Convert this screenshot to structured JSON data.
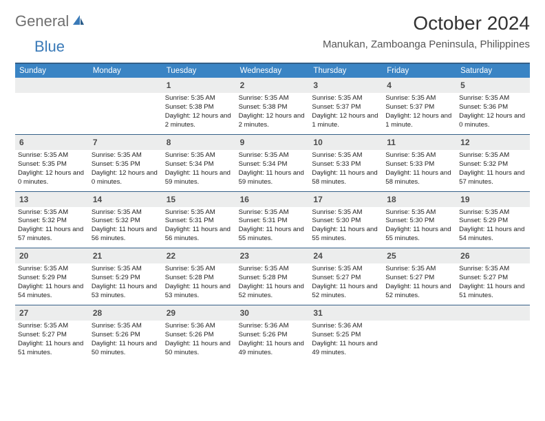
{
  "brand": {
    "word1": "General",
    "word2": "Blue"
  },
  "colors": {
    "header_bg": "#3a84c4",
    "border": "#345f87",
    "daynum_bg": "#eceded",
    "logo_gray": "#6f6f6f",
    "logo_blue": "#3a7ab8"
  },
  "title": "October 2024",
  "location": "Manukan, Zamboanga Peninsula, Philippines",
  "days_of_week": [
    "Sunday",
    "Monday",
    "Tuesday",
    "Wednesday",
    "Thursday",
    "Friday",
    "Saturday"
  ],
  "weeks": [
    [
      {
        "n": "",
        "sr": "",
        "ss": "",
        "dl": ""
      },
      {
        "n": "",
        "sr": "",
        "ss": "",
        "dl": ""
      },
      {
        "n": "1",
        "sr": "Sunrise: 5:35 AM",
        "ss": "Sunset: 5:38 PM",
        "dl": "Daylight: 12 hours and 2 minutes."
      },
      {
        "n": "2",
        "sr": "Sunrise: 5:35 AM",
        "ss": "Sunset: 5:38 PM",
        "dl": "Daylight: 12 hours and 2 minutes."
      },
      {
        "n": "3",
        "sr": "Sunrise: 5:35 AM",
        "ss": "Sunset: 5:37 PM",
        "dl": "Daylight: 12 hours and 1 minute."
      },
      {
        "n": "4",
        "sr": "Sunrise: 5:35 AM",
        "ss": "Sunset: 5:37 PM",
        "dl": "Daylight: 12 hours and 1 minute."
      },
      {
        "n": "5",
        "sr": "Sunrise: 5:35 AM",
        "ss": "Sunset: 5:36 PM",
        "dl": "Daylight: 12 hours and 0 minutes."
      }
    ],
    [
      {
        "n": "6",
        "sr": "Sunrise: 5:35 AM",
        "ss": "Sunset: 5:35 PM",
        "dl": "Daylight: 12 hours and 0 minutes."
      },
      {
        "n": "7",
        "sr": "Sunrise: 5:35 AM",
        "ss": "Sunset: 5:35 PM",
        "dl": "Daylight: 12 hours and 0 minutes."
      },
      {
        "n": "8",
        "sr": "Sunrise: 5:35 AM",
        "ss": "Sunset: 5:34 PM",
        "dl": "Daylight: 11 hours and 59 minutes."
      },
      {
        "n": "9",
        "sr": "Sunrise: 5:35 AM",
        "ss": "Sunset: 5:34 PM",
        "dl": "Daylight: 11 hours and 59 minutes."
      },
      {
        "n": "10",
        "sr": "Sunrise: 5:35 AM",
        "ss": "Sunset: 5:33 PM",
        "dl": "Daylight: 11 hours and 58 minutes."
      },
      {
        "n": "11",
        "sr": "Sunrise: 5:35 AM",
        "ss": "Sunset: 5:33 PM",
        "dl": "Daylight: 11 hours and 58 minutes."
      },
      {
        "n": "12",
        "sr": "Sunrise: 5:35 AM",
        "ss": "Sunset: 5:32 PM",
        "dl": "Daylight: 11 hours and 57 minutes."
      }
    ],
    [
      {
        "n": "13",
        "sr": "Sunrise: 5:35 AM",
        "ss": "Sunset: 5:32 PM",
        "dl": "Daylight: 11 hours and 57 minutes."
      },
      {
        "n": "14",
        "sr": "Sunrise: 5:35 AM",
        "ss": "Sunset: 5:32 PM",
        "dl": "Daylight: 11 hours and 56 minutes."
      },
      {
        "n": "15",
        "sr": "Sunrise: 5:35 AM",
        "ss": "Sunset: 5:31 PM",
        "dl": "Daylight: 11 hours and 56 minutes."
      },
      {
        "n": "16",
        "sr": "Sunrise: 5:35 AM",
        "ss": "Sunset: 5:31 PM",
        "dl": "Daylight: 11 hours and 55 minutes."
      },
      {
        "n": "17",
        "sr": "Sunrise: 5:35 AM",
        "ss": "Sunset: 5:30 PM",
        "dl": "Daylight: 11 hours and 55 minutes."
      },
      {
        "n": "18",
        "sr": "Sunrise: 5:35 AM",
        "ss": "Sunset: 5:30 PM",
        "dl": "Daylight: 11 hours and 55 minutes."
      },
      {
        "n": "19",
        "sr": "Sunrise: 5:35 AM",
        "ss": "Sunset: 5:29 PM",
        "dl": "Daylight: 11 hours and 54 minutes."
      }
    ],
    [
      {
        "n": "20",
        "sr": "Sunrise: 5:35 AM",
        "ss": "Sunset: 5:29 PM",
        "dl": "Daylight: 11 hours and 54 minutes."
      },
      {
        "n": "21",
        "sr": "Sunrise: 5:35 AM",
        "ss": "Sunset: 5:29 PM",
        "dl": "Daylight: 11 hours and 53 minutes."
      },
      {
        "n": "22",
        "sr": "Sunrise: 5:35 AM",
        "ss": "Sunset: 5:28 PM",
        "dl": "Daylight: 11 hours and 53 minutes."
      },
      {
        "n": "23",
        "sr": "Sunrise: 5:35 AM",
        "ss": "Sunset: 5:28 PM",
        "dl": "Daylight: 11 hours and 52 minutes."
      },
      {
        "n": "24",
        "sr": "Sunrise: 5:35 AM",
        "ss": "Sunset: 5:27 PM",
        "dl": "Daylight: 11 hours and 52 minutes."
      },
      {
        "n": "25",
        "sr": "Sunrise: 5:35 AM",
        "ss": "Sunset: 5:27 PM",
        "dl": "Daylight: 11 hours and 52 minutes."
      },
      {
        "n": "26",
        "sr": "Sunrise: 5:35 AM",
        "ss": "Sunset: 5:27 PM",
        "dl": "Daylight: 11 hours and 51 minutes."
      }
    ],
    [
      {
        "n": "27",
        "sr": "Sunrise: 5:35 AM",
        "ss": "Sunset: 5:27 PM",
        "dl": "Daylight: 11 hours and 51 minutes."
      },
      {
        "n": "28",
        "sr": "Sunrise: 5:35 AM",
        "ss": "Sunset: 5:26 PM",
        "dl": "Daylight: 11 hours and 50 minutes."
      },
      {
        "n": "29",
        "sr": "Sunrise: 5:36 AM",
        "ss": "Sunset: 5:26 PM",
        "dl": "Daylight: 11 hours and 50 minutes."
      },
      {
        "n": "30",
        "sr": "Sunrise: 5:36 AM",
        "ss": "Sunset: 5:26 PM",
        "dl": "Daylight: 11 hours and 49 minutes."
      },
      {
        "n": "31",
        "sr": "Sunrise: 5:36 AM",
        "ss": "Sunset: 5:25 PM",
        "dl": "Daylight: 11 hours and 49 minutes."
      },
      {
        "n": "",
        "sr": "",
        "ss": "",
        "dl": ""
      },
      {
        "n": "",
        "sr": "",
        "ss": "",
        "dl": ""
      }
    ]
  ]
}
